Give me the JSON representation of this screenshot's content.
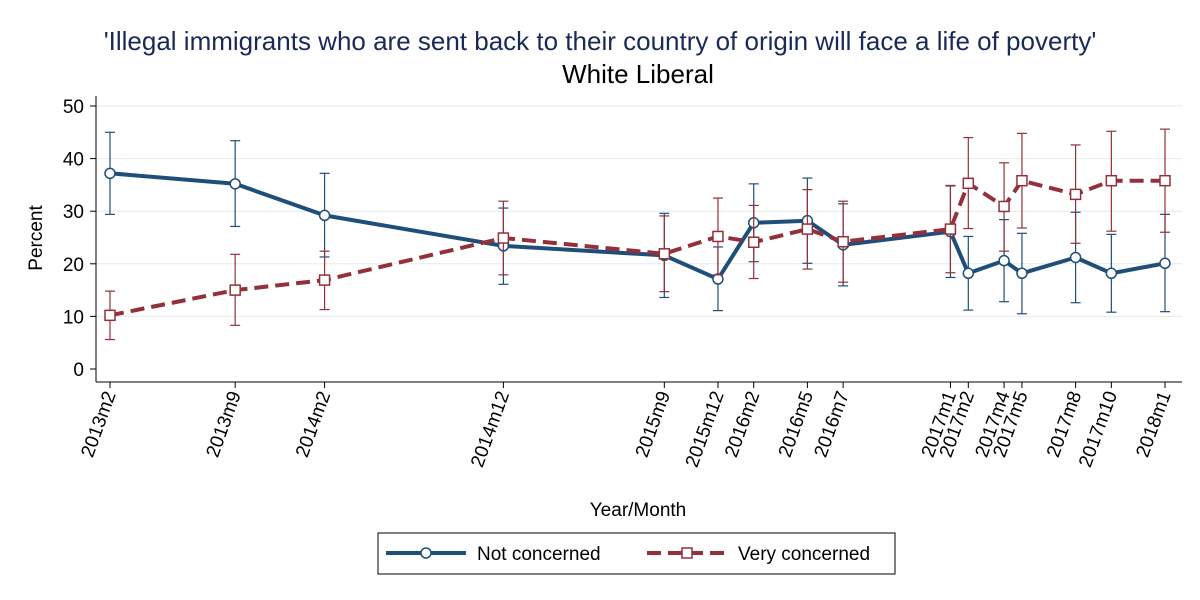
{
  "chart_data": {
    "type": "line",
    "title": "'Illegal immigrants who are sent back to their country of origin will face a life of poverty'",
    "subtitle": "White Liberal",
    "xlabel": "Year/Month",
    "ylabel": "Percent",
    "ylim": [
      0,
      50
    ],
    "yticks": [
      "0",
      "10",
      "20",
      "30",
      "40",
      "50"
    ],
    "ytick_values": [
      0,
      10,
      20,
      30,
      40,
      50
    ],
    "grid": true,
    "legend_position": "bottom",
    "categories": [
      "2013m2",
      "2013m9",
      "2014m2",
      "2014m12",
      "2015m9",
      "2015m12",
      "2016m2",
      "2016m5",
      "2016m7",
      "2017m1",
      "2017m2",
      "2017m4",
      "2017m5",
      "2017m8",
      "2017m10",
      "2018m1"
    ],
    "month_index": [
      1,
      8,
      13,
      23,
      32,
      35,
      37,
      40,
      42,
      48,
      49,
      51,
      52,
      55,
      57,
      60
    ],
    "series": [
      {
        "name": "Not concerned",
        "color": "#1f4e79",
        "marker": "circle",
        "line_style": "solid",
        "values": [
          37.2,
          35.2,
          29.2,
          23.4,
          21.6,
          17.1,
          27.8,
          28.2,
          23.6,
          26.1,
          18.2,
          20.6,
          18.2,
          21.2,
          18.2,
          20.1
        ],
        "ci_low": [
          29.4,
          27.1,
          21.3,
          16.1,
          13.6,
          11.1,
          20.4,
          20.1,
          15.8,
          17.4,
          11.2,
          12.8,
          10.5,
          12.6,
          10.8,
          10.9
        ],
        "ci_high": [
          45.0,
          43.4,
          37.2,
          30.6,
          29.6,
          23.2,
          35.2,
          36.3,
          31.4,
          34.8,
          25.2,
          28.4,
          25.8,
          29.8,
          25.6,
          29.4
        ]
      },
      {
        "name": "Very concerned",
        "color": "#93303a",
        "marker": "square",
        "line_style": "dashed",
        "values": [
          10.2,
          15.0,
          16.9,
          24.9,
          21.9,
          25.2,
          24.1,
          26.6,
          24.2,
          26.6,
          35.3,
          30.9,
          35.8,
          33.2,
          35.8,
          35.8
        ],
        "ci_low": [
          5.6,
          8.3,
          11.3,
          17.9,
          14.7,
          17.9,
          17.2,
          19.0,
          16.5,
          18.3,
          26.7,
          22.4,
          26.8,
          23.9,
          26.2,
          26.0
        ],
        "ci_high": [
          14.8,
          21.8,
          22.4,
          31.9,
          29.1,
          32.5,
          31.1,
          34.1,
          31.9,
          34.9,
          44.0,
          39.2,
          44.8,
          42.6,
          45.2,
          45.6
        ]
      }
    ]
  }
}
